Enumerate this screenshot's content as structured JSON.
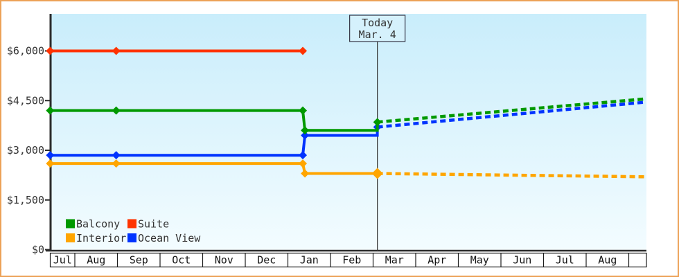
{
  "colors": {
    "border": "#eca257",
    "plot_bg_top": "#c9edfb",
    "plot_bg_bottom": "#f3fcff",
    "axis": "#2b2b2b",
    "text": "#333333",
    "month_text": "#111111",
    "cell_bg": "#ffffff",
    "cell_border": "#1a1a1a",
    "today_line": "#333333",
    "today_box_bg": "#d5f1fc",
    "today_box_border": "#333344"
  },
  "chart_data": {
    "type": "line",
    "x_unit": "months, 0 = Jul 1 of first year, 1 = Aug 1, ... 14 = Sep 1 next year",
    "x_axis": {
      "months": [
        "Jul",
        "Aug",
        "Sep",
        "Oct",
        "Nov",
        "Dec",
        "Jan",
        "Feb",
        "Mar",
        "Apr",
        "May",
        "Jun",
        "Jul",
        "Aug"
      ],
      "start_month": 0.42,
      "end_month": 14.37
    },
    "y_axis": {
      "min": 0,
      "max": 7100,
      "ticks": [
        {
          "value": 0,
          "label": "$0"
        },
        {
          "value": 1500,
          "label": "$1,500"
        },
        {
          "value": 3000,
          "label": "$3,000"
        },
        {
          "value": 4500,
          "label": "$4,500"
        },
        {
          "value": 6000,
          "label": "$6,000"
        }
      ]
    },
    "today": {
      "m": 8.1,
      "lines": [
        "Today",
        "Mar. 4"
      ]
    },
    "series": [
      {
        "name": "Suite",
        "color": "#ff3300",
        "solid": [
          [
            0.42,
            6000
          ],
          [
            6.35,
            6000
          ]
        ],
        "markers": [
          [
            0.42,
            6000
          ],
          [
            1.97,
            6000
          ],
          [
            6.35,
            6000
          ]
        ],
        "dotted": []
      },
      {
        "name": "Ocean View",
        "color": "#0033ff",
        "solid": [
          [
            0.42,
            2850
          ],
          [
            6.35,
            2850
          ],
          [
            6.4,
            3450
          ],
          [
            8.1,
            3450
          ],
          [
            8.1,
            3700
          ]
        ],
        "markers": [
          [
            0.42,
            2850
          ],
          [
            1.97,
            2850
          ],
          [
            6.35,
            2850
          ],
          [
            6.4,
            3450
          ],
          [
            8.1,
            3700
          ]
        ],
        "dotted": [
          [
            8.1,
            3700
          ],
          [
            14.37,
            4450
          ]
        ]
      },
      {
        "name": "Balcony",
        "color": "#009900",
        "solid": [
          [
            0.42,
            4200
          ],
          [
            6.35,
            4200
          ],
          [
            6.4,
            3600
          ],
          [
            8.1,
            3600
          ],
          [
            8.1,
            3850
          ]
        ],
        "markers": [
          [
            0.42,
            4200
          ],
          [
            1.97,
            4200
          ],
          [
            6.35,
            4200
          ],
          [
            6.4,
            3600
          ],
          [
            8.1,
            3850
          ]
        ],
        "dotted": [
          [
            8.1,
            3850
          ],
          [
            14.37,
            4550
          ]
        ]
      },
      {
        "name": "Interior",
        "color": "#ffa500",
        "solid": [
          [
            0.42,
            2600
          ],
          [
            6.35,
            2600
          ],
          [
            6.4,
            2300
          ],
          [
            8.1,
            2300
          ]
        ],
        "markers": [
          [
            0.42,
            2600
          ],
          [
            1.97,
            2600
          ],
          [
            6.35,
            2600
          ],
          [
            6.4,
            2300
          ],
          [
            8.1,
            2300,
            8
          ]
        ],
        "dotted": [
          [
            8.1,
            2300
          ],
          [
            14.37,
            2200
          ]
        ]
      }
    ],
    "legend": {
      "items": [
        {
          "label": "Balcony",
          "color": "#009900"
        },
        {
          "label": "Suite",
          "color": "#ff3300"
        },
        {
          "label": "Interior",
          "color": "#ffa500"
        },
        {
          "label": "Ocean View",
          "color": "#0033ff"
        }
      ]
    }
  }
}
